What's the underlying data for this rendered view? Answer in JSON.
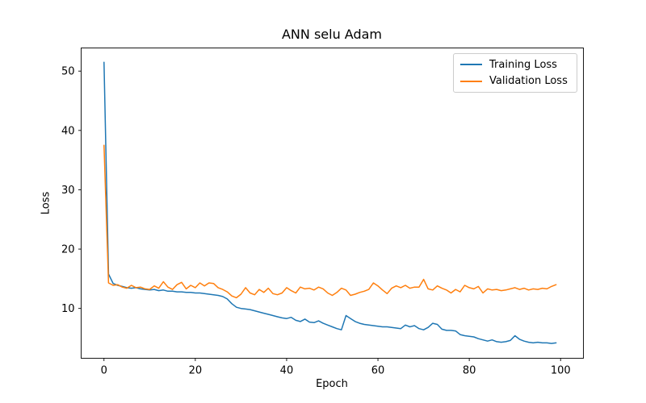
{
  "chart_data": {
    "type": "line",
    "title": "ANN selu Adam",
    "xlabel": "Epoch",
    "ylabel": "Loss",
    "xlim": [
      -5,
      105
    ],
    "ylim": [
      1.6,
      53.9
    ],
    "xticks": [
      0,
      20,
      40,
      60,
      80,
      100
    ],
    "yticks": [
      10,
      20,
      30,
      40,
      50
    ],
    "grid": false,
    "legend_position": "upper right",
    "x": [
      0,
      1,
      2,
      3,
      4,
      5,
      6,
      7,
      8,
      9,
      10,
      11,
      12,
      13,
      14,
      15,
      16,
      17,
      18,
      19,
      20,
      21,
      22,
      23,
      24,
      25,
      26,
      27,
      28,
      29,
      30,
      31,
      32,
      33,
      34,
      35,
      36,
      37,
      38,
      39,
      40,
      41,
      42,
      43,
      44,
      45,
      46,
      47,
      48,
      49,
      50,
      51,
      52,
      53,
      54,
      55,
      56,
      57,
      58,
      59,
      60,
      61,
      62,
      63,
      64,
      65,
      66,
      67,
      68,
      69,
      70,
      71,
      72,
      73,
      74,
      75,
      76,
      77,
      78,
      79,
      80,
      81,
      82,
      83,
      84,
      85,
      86,
      87,
      88,
      89,
      90,
      91,
      92,
      93,
      94,
      95,
      96,
      97,
      98,
      99
    ],
    "series": [
      {
        "name": "Training Loss",
        "color": "#1f77b4",
        "values": [
          51.5,
          15.8,
          14.2,
          13.9,
          13.7,
          13.5,
          13.4,
          13.5,
          13.3,
          13.2,
          13.1,
          13.2,
          13.0,
          13.1,
          12.9,
          12.9,
          12.8,
          12.8,
          12.7,
          12.7,
          12.6,
          12.6,
          12.5,
          12.4,
          12.3,
          12.2,
          12.0,
          11.6,
          10.8,
          10.2,
          10.0,
          9.9,
          9.8,
          9.6,
          9.4,
          9.2,
          9.0,
          8.8,
          8.6,
          8.4,
          8.3,
          8.5,
          8.0,
          7.8,
          8.2,
          7.7,
          7.6,
          7.9,
          7.5,
          7.2,
          6.9,
          6.6,
          6.4,
          8.8,
          8.3,
          7.8,
          7.5,
          7.3,
          7.2,
          7.1,
          7.0,
          6.9,
          6.9,
          6.8,
          6.7,
          6.6,
          7.2,
          6.9,
          7.1,
          6.6,
          6.4,
          6.8,
          7.5,
          7.3,
          6.5,
          6.3,
          6.3,
          6.2,
          5.6,
          5.4,
          5.3,
          5.2,
          4.9,
          4.7,
          4.5,
          4.7,
          4.4,
          4.3,
          4.4,
          4.6,
          5.4,
          4.8,
          4.5,
          4.3,
          4.2,
          4.3,
          4.2,
          4.2,
          4.1,
          4.2
        ]
      },
      {
        "name": "Validation Loss",
        "color": "#ff7f0e",
        "values": [
          37.5,
          14.3,
          13.9,
          14.0,
          13.6,
          13.4,
          13.9,
          13.5,
          13.6,
          13.3,
          13.2,
          13.8,
          13.4,
          14.5,
          13.6,
          13.2,
          14.0,
          14.4,
          13.3,
          13.9,
          13.5,
          14.3,
          13.8,
          14.3,
          14.2,
          13.5,
          13.2,
          12.8,
          12.1,
          11.8,
          12.4,
          13.5,
          12.6,
          12.3,
          13.2,
          12.7,
          13.4,
          12.5,
          12.3,
          12.6,
          13.5,
          13.0,
          12.6,
          13.6,
          13.3,
          13.4,
          13.1,
          13.6,
          13.3,
          12.6,
          12.2,
          12.7,
          13.4,
          13.1,
          12.2,
          12.4,
          12.7,
          12.9,
          13.2,
          14.3,
          13.8,
          13.1,
          12.5,
          13.4,
          13.8,
          13.5,
          13.9,
          13.4,
          13.6,
          13.6,
          14.9,
          13.3,
          13.1,
          13.8,
          13.4,
          13.1,
          12.6,
          13.2,
          12.8,
          13.9,
          13.5,
          13.3,
          13.7,
          12.6,
          13.3,
          13.1,
          13.2,
          13.0,
          13.1,
          13.3,
          13.5,
          13.2,
          13.4,
          13.1,
          13.3,
          13.2,
          13.4,
          13.3,
          13.7,
          14.0
        ]
      }
    ]
  }
}
